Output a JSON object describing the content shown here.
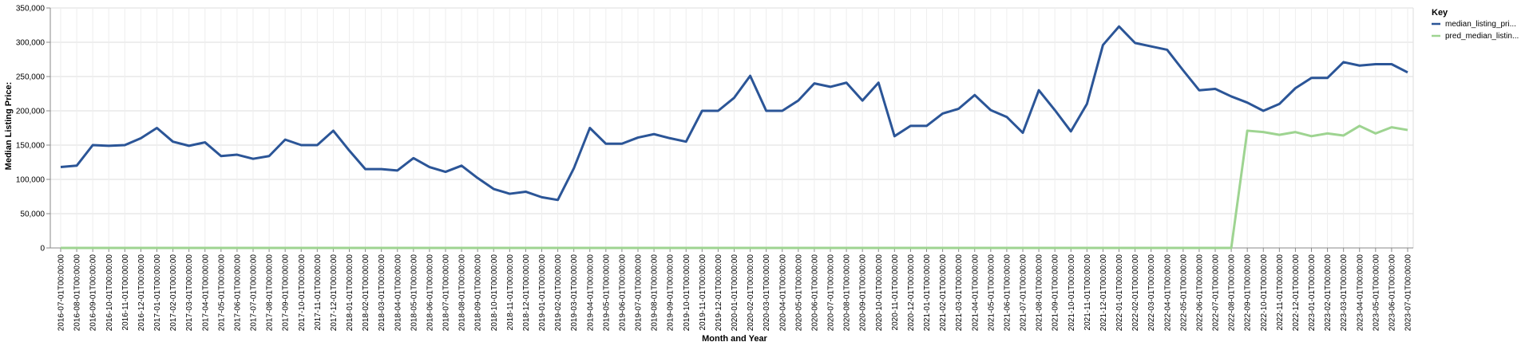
{
  "chart_data": {
    "type": "line",
    "xlabel": "Month and Year",
    "ylabel": "Median Listing Price:",
    "ylim": [
      0,
      350000
    ],
    "yticks": [
      "0",
      "50,000",
      "100,000",
      "150,000",
      "200,000",
      "250,000",
      "300,000",
      "350,000"
    ],
    "grid": true,
    "legend": {
      "title": "Key",
      "placement": "top-right"
    },
    "x": [
      "2016-07-01T00:00:00",
      "2016-08-01T00:00:00",
      "2016-09-01T00:00:00",
      "2016-10-01T00:00:00",
      "2016-11-01T00:00:00",
      "2016-12-01T00:00:00",
      "2017-01-01T00:00:00",
      "2017-02-01T00:00:00",
      "2017-03-01T00:00:00",
      "2017-04-01T00:00:00",
      "2017-05-01T00:00:00",
      "2017-06-01T00:00:00",
      "2017-07-01T00:00:00",
      "2017-08-01T00:00:00",
      "2017-09-01T00:00:00",
      "2017-10-01T00:00:00",
      "2017-11-01T00:00:00",
      "2017-12-01T00:00:00",
      "2018-01-01T00:00:00",
      "2018-02-01T00:00:00",
      "2018-03-01T00:00:00",
      "2018-04-01T00:00:00",
      "2018-05-01T00:00:00",
      "2018-06-01T00:00:00",
      "2018-07-01T00:00:00",
      "2018-08-01T00:00:00",
      "2018-09-01T00:00:00",
      "2018-10-01T00:00:00",
      "2018-11-01T00:00:00",
      "2018-12-01T00:00:00",
      "2019-01-01T00:00:00",
      "2019-02-01T00:00:00",
      "2019-03-01T00:00:00",
      "2019-04-01T00:00:00",
      "2019-05-01T00:00:00",
      "2019-06-01T00:00:00",
      "2019-07-01T00:00:00",
      "2019-08-01T00:00:00",
      "2019-09-01T00:00:00",
      "2019-10-01T00:00:00",
      "2019-11-01T00:00:00",
      "2019-12-01T00:00:00",
      "2020-01-01T00:00:00",
      "2020-02-01T00:00:00",
      "2020-03-01T00:00:00",
      "2020-04-01T00:00:00",
      "2020-05-01T00:00:00",
      "2020-06-01T00:00:00",
      "2020-07-01T00:00:00",
      "2020-08-01T00:00:00",
      "2020-09-01T00:00:00",
      "2020-10-01T00:00:00",
      "2020-11-01T00:00:00",
      "2020-12-01T00:00:00",
      "2021-01-01T00:00:00",
      "2021-02-01T00:00:00",
      "2021-03-01T00:00:00",
      "2021-04-01T00:00:00",
      "2021-05-01T00:00:00",
      "2021-06-01T00:00:00",
      "2021-07-01T00:00:00",
      "2021-08-01T00:00:00",
      "2021-09-01T00:00:00",
      "2021-10-01T00:00:00",
      "2021-11-01T00:00:00",
      "2021-12-01T00:00:00",
      "2022-01-01T00:00:00",
      "2022-02-01T00:00:00",
      "2022-03-01T00:00:00",
      "2022-04-01T00:00:00",
      "2022-05-01T00:00:00",
      "2022-06-01T00:00:00",
      "2022-07-01T00:00:00",
      "2022-08-01T00:00:00",
      "2022-09-01T00:00:00",
      "2022-10-01T00:00:00",
      "2022-11-01T00:00:00",
      "2022-12-01T00:00:00",
      "2023-01-01T00:00:00",
      "2023-02-01T00:00:00",
      "2023-03-01T00:00:00",
      "2023-04-01T00:00:00",
      "2023-05-01T00:00:00",
      "2023-06-01T00:00:00",
      "2023-07-01T00:00:00"
    ],
    "series": [
      {
        "name": "median_listing_pri...",
        "color": "#2b5597",
        "values": [
          118000,
          120000,
          150000,
          149000,
          150000,
          160000,
          175000,
          155000,
          149000,
          154000,
          134000,
          136000,
          130000,
          134000,
          158000,
          150000,
          150000,
          171000,
          142000,
          115000,
          115000,
          113000,
          131000,
          118000,
          111000,
          120000,
          102000,
          86000,
          79000,
          82000,
          74000,
          70000,
          116000,
          175000,
          152000,
          152000,
          161000,
          166000,
          160000,
          155000,
          200000,
          200000,
          219000,
          251000,
          200000,
          200000,
          215000,
          240000,
          235000,
          241000,
          215000,
          241000,
          163000,
          178000,
          178000,
          196000,
          203000,
          223000,
          201000,
          191000,
          168000,
          230000,
          201000,
          170000,
          210000,
          296000,
          323000,
          299000,
          294000,
          289000,
          259000,
          230000,
          232000,
          221000,
          212000,
          200000,
          210000,
          233000,
          248000,
          248000,
          271000,
          266000,
          268000,
          268000,
          256000
        ]
      },
      {
        "name": "pred_median_listin...",
        "color": "#9ed491",
        "values": [
          0,
          0,
          0,
          0,
          0,
          0,
          0,
          0,
          0,
          0,
          0,
          0,
          0,
          0,
          0,
          0,
          0,
          0,
          0,
          0,
          0,
          0,
          0,
          0,
          0,
          0,
          0,
          0,
          0,
          0,
          0,
          0,
          0,
          0,
          0,
          0,
          0,
          0,
          0,
          0,
          0,
          0,
          0,
          0,
          0,
          0,
          0,
          0,
          0,
          0,
          0,
          0,
          0,
          0,
          0,
          0,
          0,
          0,
          0,
          0,
          0,
          0,
          0,
          0,
          0,
          0,
          0,
          0,
          0,
          0,
          0,
          0,
          0,
          0,
          171000,
          169000,
          165000,
          169000,
          163000,
          167000,
          164000,
          178000,
          167000,
          176000,
          172000
        ]
      }
    ]
  }
}
